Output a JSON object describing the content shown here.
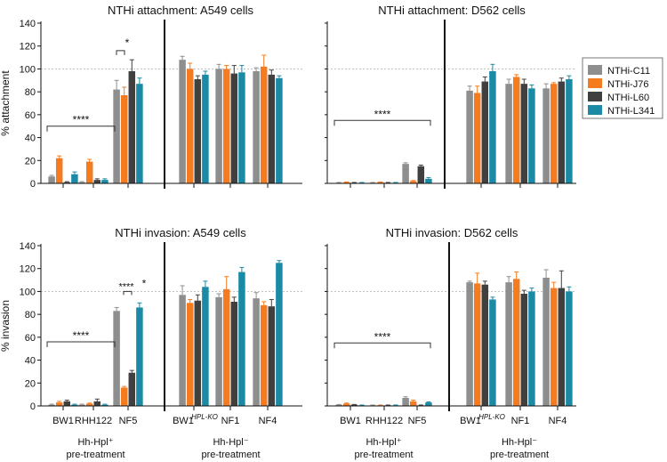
{
  "legend": {
    "items": [
      {
        "label": "NTHi-C11",
        "color": "#8e8e8e"
      },
      {
        "label": "NTHi-J76",
        "color": "#f47b20"
      },
      {
        "label": "NTHi-L60",
        "color": "#404040"
      },
      {
        "label": "NTHi-L341",
        "color": "#1b8aa6"
      }
    ]
  },
  "chart_data": [
    {
      "type": "bar",
      "title": "NTHi attachment: A549 cells",
      "ylabel": "% attachment",
      "ylim": [
        0,
        140
      ],
      "yticks": [
        0,
        20,
        40,
        60,
        80,
        100,
        120,
        140
      ],
      "reference_line": 100,
      "groups": [
        "BW1",
        "RHH122",
        "NF5",
        "BW1 HPL-KO",
        "NF1",
        "NF4"
      ],
      "series": [
        {
          "name": "NTHi-C11",
          "values": [
            6,
            1,
            82,
            108,
            100,
            98
          ],
          "errors": [
            1,
            0.5,
            8,
            3,
            4,
            3
          ]
        },
        {
          "name": "NTHi-J76",
          "values": [
            22,
            19,
            77,
            100,
            100,
            102
          ],
          "errors": [
            2,
            2,
            7,
            5,
            3,
            10
          ]
        },
        {
          "name": "NTHi-L60",
          "values": [
            1,
            3,
            98,
            91,
            96,
            95
          ],
          "errors": [
            0.5,
            1,
            10,
            3,
            7,
            4
          ]
        },
        {
          "name": "NTHi-L341",
          "values": [
            8,
            3,
            87,
            95,
            97,
            92
          ],
          "errors": [
            2,
            1,
            5,
            3,
            6,
            2
          ]
        }
      ],
      "annotations": [
        {
          "text": "****",
          "from_group": 0,
          "to_group": 2
        },
        {
          "text": "*",
          "group": 2
        }
      ]
    },
    {
      "type": "bar",
      "title": "NTHi attachment: D562 cells",
      "ylabel": "",
      "ylim": [
        0,
        140
      ],
      "reference_line": 100,
      "groups": [
        "BW1",
        "RHH122",
        "NF5",
        "BW1 HPL-KO",
        "NF1",
        "NF4"
      ],
      "series": [
        {
          "name": "NTHi-C11",
          "values": [
            0.5,
            0.5,
            17,
            81,
            87,
            83
          ],
          "errors": [
            0.3,
            0.3,
            1,
            4,
            4,
            4
          ]
        },
        {
          "name": "NTHi-J76",
          "values": [
            1,
            1,
            2,
            79,
            93,
            87
          ],
          "errors": [
            0.3,
            0.3,
            0.5,
            6,
            2,
            1
          ]
        },
        {
          "name": "NTHi-L60",
          "values": [
            0.5,
            0.5,
            15,
            89,
            87,
            89
          ],
          "errors": [
            0.3,
            0.3,
            1,
            4,
            4,
            3
          ]
        },
        {
          "name": "NTHi-L341",
          "values": [
            0.5,
            0.5,
            4,
            98,
            83,
            91
          ],
          "errors": [
            0.3,
            0.3,
            1,
            6,
            3,
            3
          ]
        }
      ],
      "annotations": [
        {
          "text": "****",
          "from_group": 0,
          "to_group": 2
        }
      ]
    },
    {
      "type": "bar",
      "title": "NTHi invasion: A549 cells",
      "ylabel": "% invasion",
      "ylim": [
        0,
        140
      ],
      "yticks": [
        0,
        20,
        40,
        60,
        80,
        100,
        120,
        140
      ],
      "reference_line": 100,
      "groups": [
        "BW1",
        "RHH122",
        "NF5",
        "BW1 HPL-KO",
        "NF1",
        "NF4"
      ],
      "series": [
        {
          "name": "NTHi-C11",
          "values": [
            1,
            1,
            83,
            97,
            95,
            94
          ],
          "errors": [
            0.5,
            0.5,
            3,
            8,
            3,
            5
          ]
        },
        {
          "name": "NTHi-J76",
          "values": [
            3,
            2,
            16,
            90,
            102,
            88
          ],
          "errors": [
            1,
            0.5,
            1,
            3,
            11,
            3
          ]
        },
        {
          "name": "NTHi-L60",
          "values": [
            4,
            4,
            29,
            92,
            91,
            87
          ],
          "errors": [
            1,
            2,
            2,
            5,
            4,
            6
          ]
        },
        {
          "name": "NTHi-L341",
          "values": [
            1,
            1,
            86,
            104,
            117,
            125
          ],
          "errors": [
            0.5,
            0.5,
            4,
            5,
            4,
            2
          ]
        }
      ],
      "annotations": [
        {
          "text": "****",
          "from_group": 0,
          "to_group": 2
        },
        {
          "text": "****",
          "group": 2
        },
        {
          "text": "*",
          "group": 2
        }
      ],
      "xtick_labels": [
        "BW1",
        "RHH122",
        "NF5",
        "BW1",
        "NF1",
        "NF4"
      ],
      "xtick_superscript": "HPL-KO",
      "group_labels": [
        {
          "line1": "Hh-Hpl⁺",
          "line2": "pre-treatment"
        },
        {
          "line1": "Hh-Hpl⁻",
          "line2": "pre-treatment"
        }
      ]
    },
    {
      "type": "bar",
      "title": "NTHi invasion: D562 cells",
      "ylabel": "",
      "ylim": [
        0,
        140
      ],
      "reference_line": 100,
      "groups": [
        "BW1",
        "RHH122",
        "NF5",
        "BW1 HPL-KO",
        "NF1",
        "NF4"
      ],
      "series": [
        {
          "name": "NTHi-C11",
          "values": [
            1,
            0.5,
            7,
            108,
            108,
            112
          ],
          "errors": [
            0.3,
            0.3,
            1,
            1,
            5,
            7
          ]
        },
        {
          "name": "NTHi-J76",
          "values": [
            2,
            0.5,
            4,
            107,
            111,
            103
          ],
          "errors": [
            0.5,
            0.3,
            1,
            9,
            6,
            5
          ]
        },
        {
          "name": "NTHi-L60",
          "values": [
            1,
            0.5,
            0.5,
            106,
            98,
            103
          ],
          "errors": [
            0.3,
            0.3,
            0.3,
            3,
            3,
            15
          ]
        },
        {
          "name": "NTHi-L341",
          "values": [
            0.5,
            0.5,
            3,
            93,
            100,
            100
          ],
          "errors": [
            0.3,
            0.3,
            0.5,
            2,
            3,
            4
          ]
        }
      ],
      "annotations": [
        {
          "text": "****",
          "from_group": 0,
          "to_group": 2
        }
      ],
      "xtick_labels": [
        "BW1",
        "RHH122",
        "NF5",
        "BW1",
        "NF1",
        "NF4"
      ],
      "xtick_superscript": "HPL-KO",
      "group_labels": [
        {
          "line1": "Hh-Hpl⁺",
          "line2": "pre-treatment"
        },
        {
          "line1": "Hh-Hpl⁻",
          "line2": "pre-treatment"
        }
      ]
    }
  ]
}
